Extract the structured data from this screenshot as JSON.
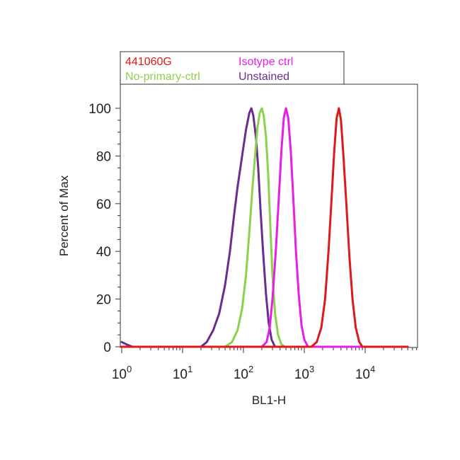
{
  "chart_data": {
    "type": "line",
    "title": "",
    "xlabel": "BL1-H",
    "ylabel": "Percent of Max",
    "x_scale": "log",
    "xlim": [
      1,
      60000
    ],
    "ylim": [
      0,
      110
    ],
    "grid": false,
    "legend_position": "top-left",
    "x_ticks": [
      {
        "base": "10",
        "exp": "0",
        "value": 1
      },
      {
        "base": "10",
        "exp": "1",
        "value": 10
      },
      {
        "base": "10",
        "exp": "2",
        "value": 100
      },
      {
        "base": "10",
        "exp": "3",
        "value": 1000
      },
      {
        "base": "10",
        "exp": "4",
        "value": 10000
      }
    ],
    "y_ticks": [
      {
        "label": "0",
        "value": 0
      },
      {
        "label": "20",
        "value": 20
      },
      {
        "label": "40",
        "value": 40
      },
      {
        "label": "60",
        "value": 60
      },
      {
        "label": "80",
        "value": 80
      },
      {
        "label": "100",
        "value": 100
      }
    ],
    "series": [
      {
        "name": "Unstained",
        "color": "#6a2c91",
        "points": [
          [
            1,
            2
          ],
          [
            1.2,
            1
          ],
          [
            1.5,
            0
          ],
          [
            20,
            0
          ],
          [
            25,
            2
          ],
          [
            32,
            7
          ],
          [
            40,
            14
          ],
          [
            50,
            26
          ],
          [
            60,
            40
          ],
          [
            70,
            55
          ],
          [
            80,
            67
          ],
          [
            95,
            80
          ],
          [
            110,
            91
          ],
          [
            125,
            98
          ],
          [
            135,
            100
          ],
          [
            145,
            97
          ],
          [
            160,
            88
          ],
          [
            175,
            75
          ],
          [
            190,
            58
          ],
          [
            210,
            40
          ],
          [
            235,
            22
          ],
          [
            260,
            10
          ],
          [
            290,
            3
          ],
          [
            330,
            0
          ],
          [
            50000,
            0
          ]
        ]
      },
      {
        "name": "No-primary-ctrl",
        "color": "#8cd14a",
        "points": [
          [
            1,
            0
          ],
          [
            50,
            0
          ],
          [
            65,
            2
          ],
          [
            80,
            7
          ],
          [
            95,
            16
          ],
          [
            110,
            30
          ],
          [
            125,
            48
          ],
          [
            140,
            66
          ],
          [
            155,
            80
          ],
          [
            170,
            92
          ],
          [
            185,
            98
          ],
          [
            200,
            100
          ],
          [
            215,
            97
          ],
          [
            235,
            88
          ],
          [
            255,
            72
          ],
          [
            275,
            52
          ],
          [
            300,
            30
          ],
          [
            330,
            14
          ],
          [
            370,
            5
          ],
          [
            420,
            1
          ],
          [
            480,
            0
          ],
          [
            50000,
            0
          ]
        ]
      },
      {
        "name": "Isotype ctrl",
        "color": "#e61ee6",
        "points": [
          [
            1,
            0
          ],
          [
            200,
            0
          ],
          [
            240,
            2
          ],
          [
            270,
            8
          ],
          [
            300,
            20
          ],
          [
            340,
            40
          ],
          [
            380,
            62
          ],
          [
            420,
            82
          ],
          [
            460,
            96
          ],
          [
            500,
            100
          ],
          [
            545,
            96
          ],
          [
            600,
            82
          ],
          [
            660,
            62
          ],
          [
            730,
            40
          ],
          [
            810,
            22
          ],
          [
            900,
            9
          ],
          [
            1000,
            3
          ],
          [
            1150,
            0
          ],
          [
            50000,
            0
          ]
        ]
      },
      {
        "name": "441060G",
        "color": "#dd1a1a",
        "points": [
          [
            1,
            0
          ],
          [
            1300,
            0
          ],
          [
            1600,
            2
          ],
          [
            1900,
            8
          ],
          [
            2200,
            20
          ],
          [
            2500,
            40
          ],
          [
            2800,
            62
          ],
          [
            3100,
            82
          ],
          [
            3400,
            96
          ],
          [
            3700,
            100
          ],
          [
            4000,
            95
          ],
          [
            4400,
            80
          ],
          [
            4900,
            60
          ],
          [
            5500,
            38
          ],
          [
            6200,
            20
          ],
          [
            7000,
            8
          ],
          [
            8000,
            2
          ],
          [
            9000,
            0
          ],
          [
            50000,
            0
          ]
        ]
      }
    ],
    "legend": [
      {
        "label": "441060G",
        "color": "#dd1a1a"
      },
      {
        "label": "Isotype ctrl",
        "color": "#e61ee6"
      },
      {
        "label": "No-primary-ctrl",
        "color": "#8cd14a"
      },
      {
        "label": "Unstained",
        "color": "#6a2c91"
      }
    ]
  }
}
